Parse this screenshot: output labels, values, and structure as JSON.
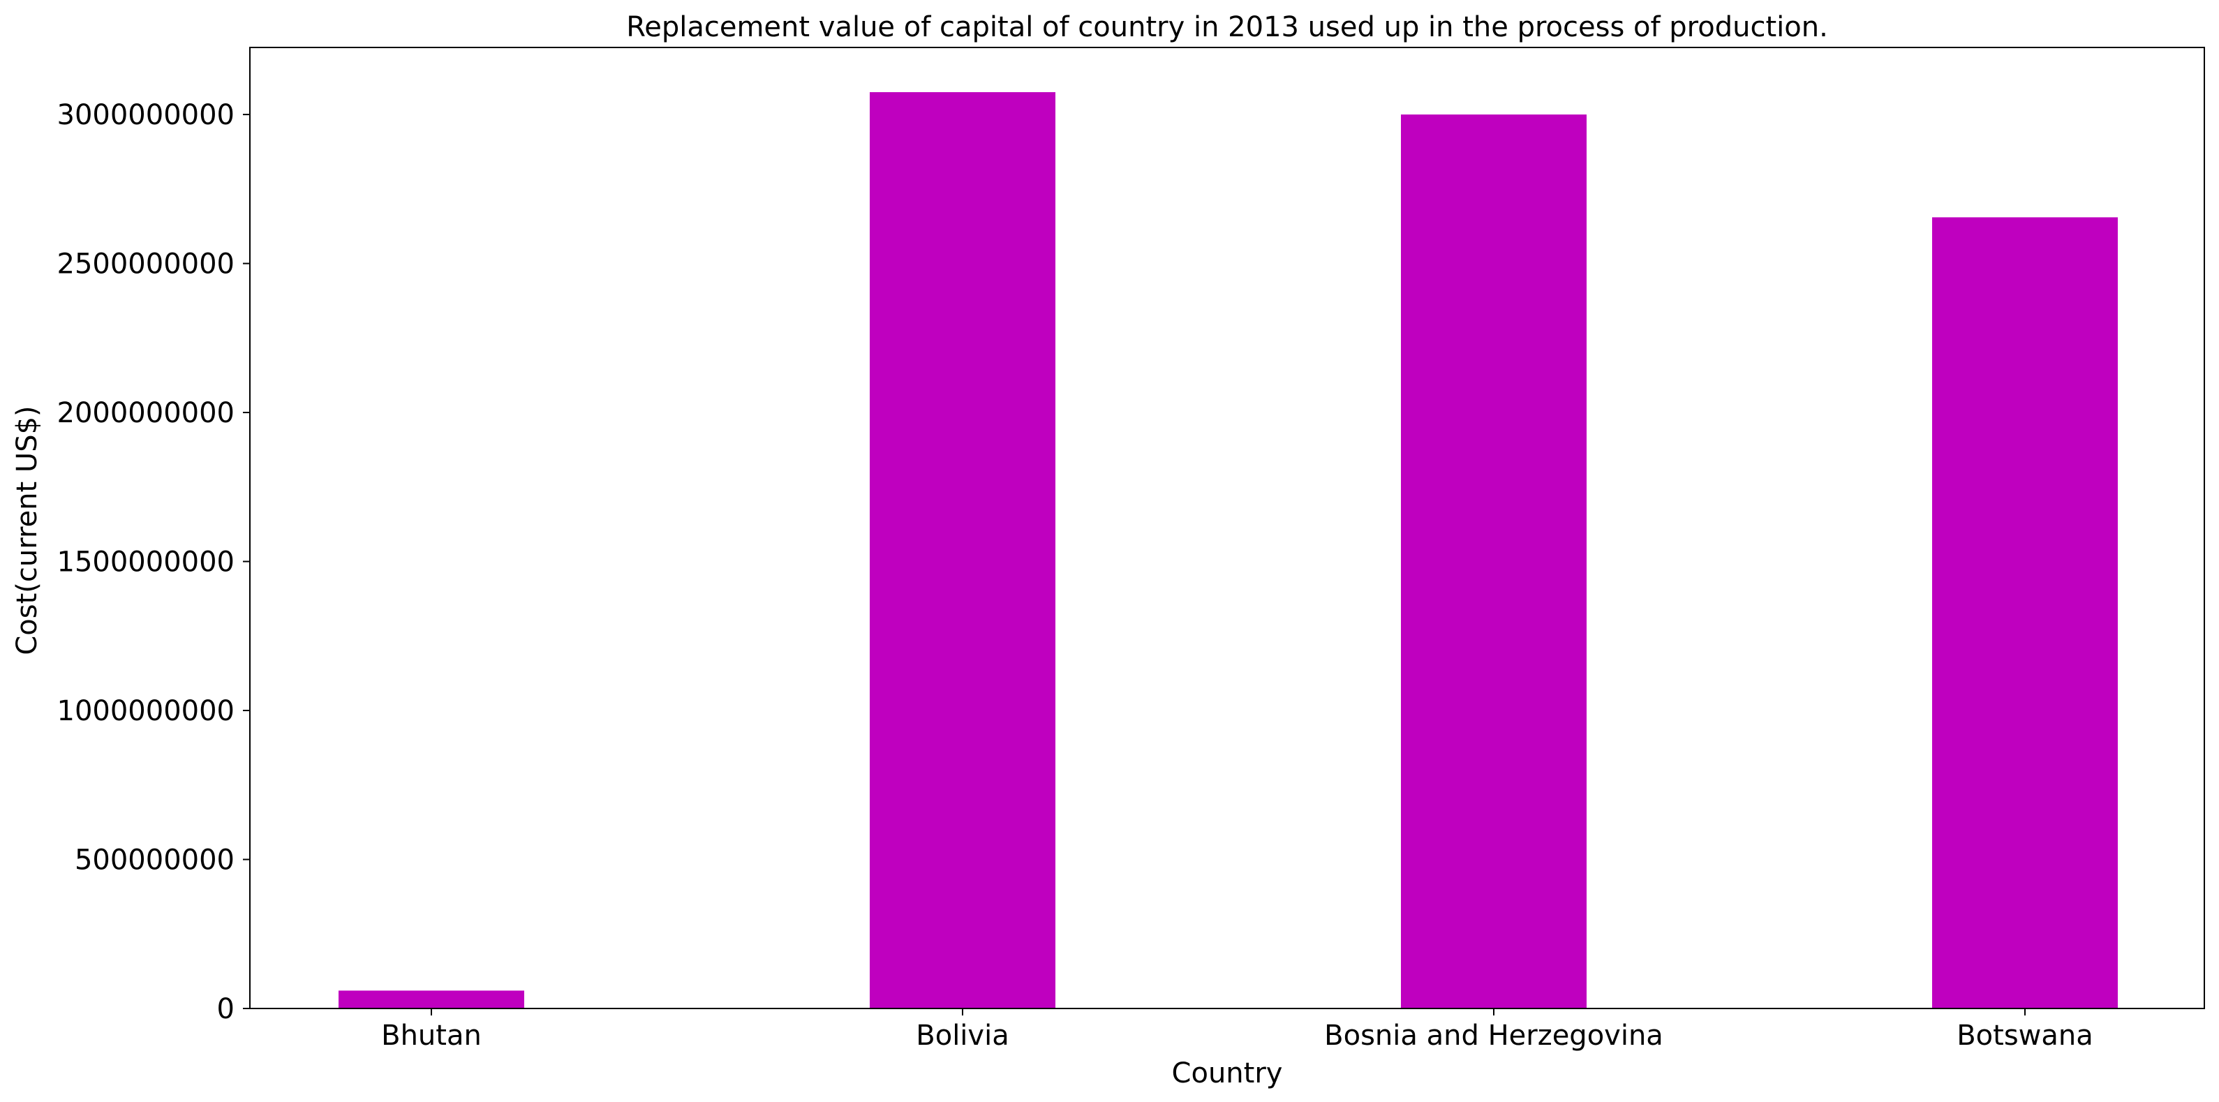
{
  "chart_data": {
    "type": "bar",
    "title": "Replacement value of capital of country in 2013 used up in the process of production.",
    "xlabel": "Country",
    "ylabel": "Cost(current US$)",
    "categories": [
      "Bhutan",
      "Bolivia",
      "Bosnia and Herzegovina",
      "Botswana"
    ],
    "values": [
      60000000,
      3075000000,
      3000000000,
      2655000000
    ],
    "ylim": [
      0,
      3225000000
    ],
    "yticks": [
      0,
      500000000,
      1000000000,
      1500000000,
      2000000000,
      2500000000,
      3000000000
    ],
    "ytick_labels": [
      "0",
      "500000000",
      "1000000000",
      "1500000000",
      "2000000000",
      "2500000000",
      "3000000000"
    ],
    "bar_color": "#bf00bf",
    "grid": false,
    "legend": "none"
  }
}
